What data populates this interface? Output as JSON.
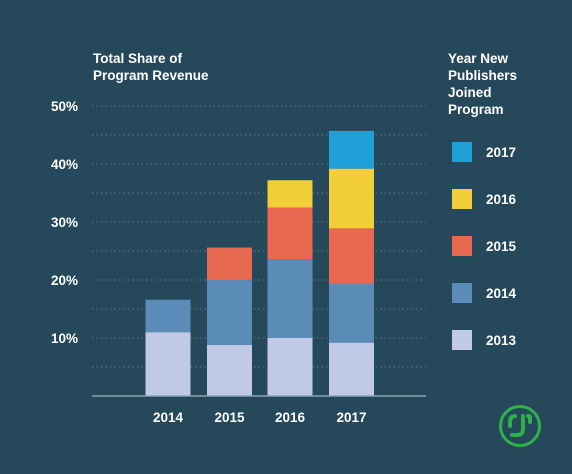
{
  "chart_data": {
    "type": "bar",
    "stacked": true,
    "ylabel_lines": [
      "Total Share of",
      "Program Revenue"
    ],
    "categories": [
      "2014",
      "2015",
      "2016",
      "2017"
    ],
    "yticks": [
      "10%",
      "20%",
      "30%",
      "40%",
      "50%"
    ],
    "ylim": [
      0,
      50
    ],
    "grid": true,
    "legend": {
      "title_lines": [
        "Year New",
        "Publishers",
        "Joined",
        "Program"
      ],
      "placement": "right"
    },
    "series": [
      {
        "name": "2013",
        "color": "#c0c9e8",
        "values": [
          11,
          8.8,
          10,
          9.2
        ]
      },
      {
        "name": "2014",
        "color": "#5b8cb8",
        "values": [
          5.6,
          11.2,
          13.6,
          10.2
        ]
      },
      {
        "name": "2015",
        "color": "#e8694f",
        "values": [
          0,
          5.6,
          8.9,
          9.5
        ]
      },
      {
        "name": "2016",
        "color": "#f2cf39",
        "values": [
          0,
          0,
          4.7,
          10.3
        ]
      },
      {
        "name": "2017",
        "color": "#1fa0d8",
        "values": [
          0,
          0,
          0,
          6.5
        ]
      }
    ]
  },
  "logo": {
    "icon": "cj-logo",
    "text": "CJ",
    "color": "#2db24a"
  }
}
